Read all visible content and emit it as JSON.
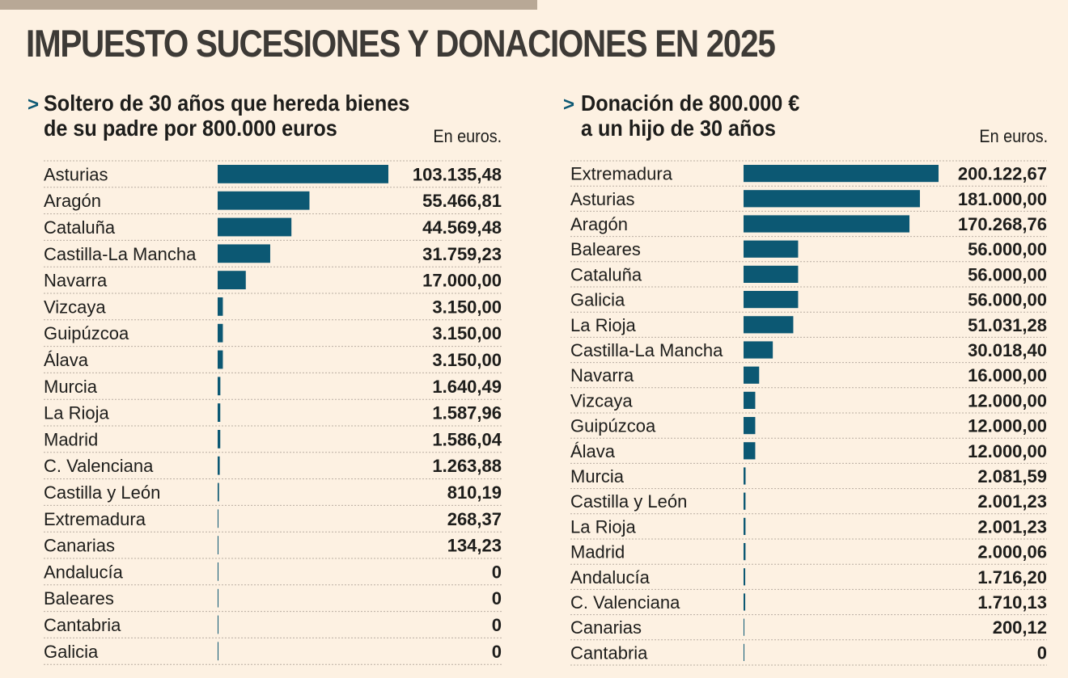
{
  "title": "IMPUESTO SUCESIONES Y DONACIONES EN 2025",
  "colors": {
    "bar": "#0c5873",
    "background": "#fdf1e2",
    "title": "#3d3a36"
  },
  "chart_data": [
    {
      "type": "bar",
      "orientation": "horizontal",
      "title_lines": [
        "Soltero de 30 años que hereda bienes",
        "de su padre por 800.000 euros"
      ],
      "units": "En euros.",
      "categories": [
        "Asturias",
        "Aragón",
        "Cataluña",
        "Castilla-La Mancha",
        "Navarra",
        "Vizcaya",
        "Guipúzcoa",
        "Álava",
        "Murcia",
        "La Rioja",
        "Madrid",
        "C. Valenciana",
        "Castilla y León",
        "Extremadura",
        "Canarias",
        "Andalucía",
        "Baleares",
        "Cantabria",
        "Galicia"
      ],
      "values": [
        103135.48,
        55466.81,
        44569.48,
        31759.23,
        17000.0,
        3150.0,
        3150.0,
        3150.0,
        1640.49,
        1587.96,
        1586.04,
        1263.88,
        810.19,
        268.37,
        134.23,
        0,
        0,
        0,
        0
      ],
      "value_labels": [
        "103.135,48",
        "55.466,81",
        "44.569,48",
        "31.759,23",
        "17.000,00",
        "3.150,00",
        "3.150,00",
        "3.150,00",
        "1.640,49",
        "1.587,96",
        "1.586,04",
        "1.263,88",
        "810,19",
        "268,37",
        "134,23",
        "0",
        "0",
        "0",
        "0"
      ]
    },
    {
      "type": "bar",
      "orientation": "horizontal",
      "title_lines": [
        "Donación de  800.000 €",
        "a un hijo de 30 años"
      ],
      "units": "En euros.",
      "categories": [
        "Extremadura",
        "Asturias",
        "Aragón",
        "Baleares",
        "Cataluña",
        "Galicia",
        "La Rioja",
        "Castilla-La Mancha",
        "Navarra",
        "Vizcaya",
        "Guipúzcoa",
        "Álava",
        "Murcia",
        "Castilla y León",
        "La Rioja",
        "Madrid",
        "Andalucía",
        "C. Valenciana",
        "Canarias",
        "Cantabria"
      ],
      "values": [
        200122.67,
        181000.0,
        170268.76,
        56000.0,
        56000.0,
        56000.0,
        51031.28,
        30018.4,
        16000.0,
        12000.0,
        12000.0,
        12000.0,
        2081.59,
        2001.23,
        2001.23,
        2000.06,
        1716.2,
        1710.13,
        200.12,
        0
      ],
      "value_labels": [
        "200.122,67",
        "181.000,00",
        "170.268,76",
        "56.000,00",
        "56.000,00",
        "56.000,00",
        "51.031,28",
        "30.018,40",
        "16.000,00",
        "12.000,00",
        "12.000,00",
        "12.000,00",
        "2.081,59",
        "2.001,23",
        "2.001,23",
        "2.000,06",
        "1.716,20",
        "1.710,13",
        "200,12",
        "0"
      ]
    }
  ]
}
